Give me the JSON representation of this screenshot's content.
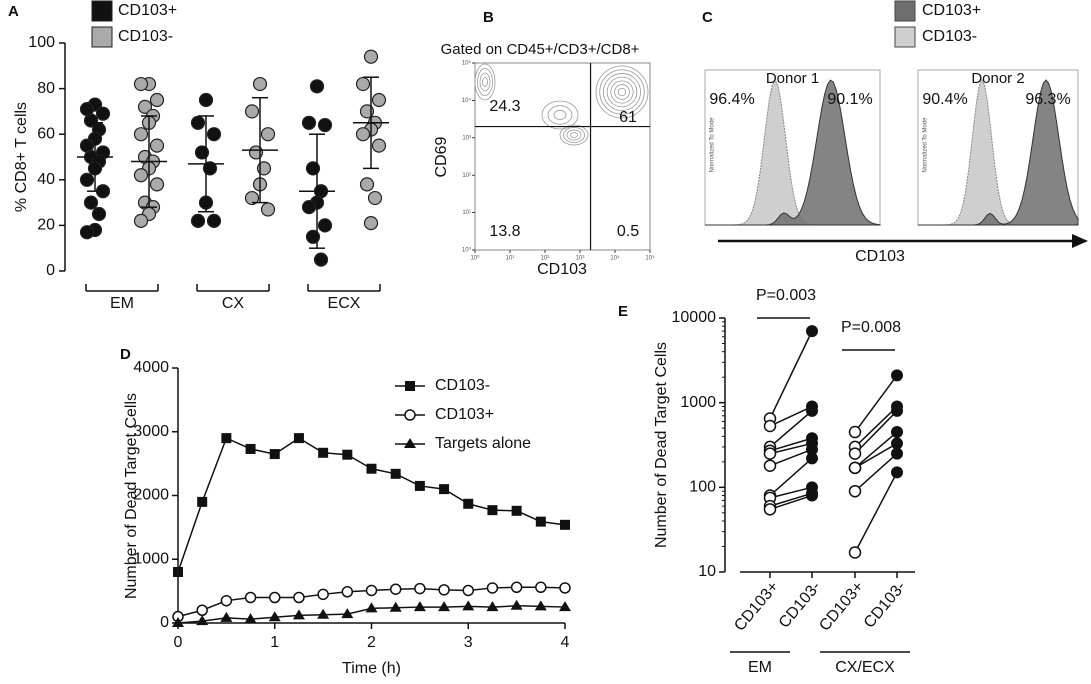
{
  "chart_data": [
    {
      "panel": "A",
      "type": "dot",
      "ylabel": "% CD8+ T cells",
      "ylim": [
        0,
        100
      ],
      "yticks": [
        0,
        20,
        40,
        60,
        80,
        100
      ],
      "categories": [
        "EM",
        "CX",
        "ECX"
      ],
      "series": [
        {
          "name": "CD103+",
          "color": "#111111",
          "values": [
            [
              73,
              71,
              69,
              66,
              62,
              58,
              55,
              52,
              50,
              48,
              45,
              40,
              35,
              30,
              25,
              18,
              17
            ],
            [
              75,
              65,
              60,
              52,
              45,
              30,
              22,
              22
            ],
            [
              81,
              65,
              64,
              45,
              35,
              30,
              28,
              20,
              15,
              5
            ]
          ],
          "mean": [
            50,
            47,
            35
          ],
          "sd": [
            15,
            21,
            25
          ]
        },
        {
          "name": "CD103-",
          "color": "#aaaaaa",
          "values": [
            [
              82,
              82,
              75,
              72,
              68,
              65,
              60,
              55,
              50,
              48,
              45,
              42,
              38,
              30,
              28,
              25,
              22
            ],
            [
              82,
              70,
              60,
              52,
              45,
              38,
              32,
              27
            ],
            [
              94,
              82,
              75,
              70,
              65,
              62,
              60,
              55,
              38,
              32,
              21
            ]
          ],
          "mean": [
            48,
            53,
            65
          ],
          "sd": [
            20,
            23,
            20
          ]
        }
      ]
    },
    {
      "panel": "B",
      "type": "flow",
      "title": "Gated on CD45+/CD3+/CD8+",
      "xlabel": "CD103",
      "ylabel": "CD69",
      "log": true,
      "xlim": [
        1,
        100000
      ],
      "ylim": [
        1,
        100000
      ],
      "xticks": [
        {
          "value": 1,
          "label": "10⁰"
        },
        {
          "value": 10,
          "label": "10¹"
        },
        {
          "value": 100,
          "label": "10²"
        },
        {
          "value": 1000,
          "label": "10³"
        },
        {
          "value": 10000,
          "label": "10⁴"
        },
        {
          "value": 100000,
          "label": "10⁵"
        }
      ],
      "yticks": [
        {
          "value": 1,
          "label": "10⁰"
        },
        {
          "value": 10,
          "label": "10¹"
        },
        {
          "value": 100,
          "label": "10²"
        },
        {
          "value": 1000,
          "label": "10³"
        },
        {
          "value": 10000,
          "label": "10⁴"
        },
        {
          "value": 100000,
          "label": "10⁵"
        }
      ],
      "gate": [
        2000,
        2000
      ],
      "quadrants": [
        24.3,
        61,
        13.8,
        0.5
      ]
    },
    {
      "panel": "C",
      "type": "histogram-overlay",
      "xlabel": "CD103",
      "ylabel": "Normalized To Mode",
      "legend": [
        {
          "name": "CD103+",
          "color": "#6e6e6e"
        },
        {
          "name": "CD103-",
          "color": "#cfcfcf"
        }
      ],
      "donors": [
        {
          "title": "Donor 1",
          "labels": [
            "96.4%",
            "90.1%"
          ]
        },
        {
          "title": "Donor 2",
          "labels": [
            "90.4%",
            "96.3%"
          ]
        }
      ]
    },
    {
      "panel": "D",
      "type": "line",
      "xlabel": "Time (h)",
      "ylabel": "Number of Dead Target Cells",
      "x": [
        0,
        0.25,
        0.5,
        0.75,
        1,
        1.25,
        1.5,
        1.75,
        2,
        2.25,
        2.5,
        2.75,
        3,
        3.25,
        3.5,
        3.75,
        4
      ],
      "xlim": [
        0,
        4
      ],
      "xticks": [
        0,
        1,
        2,
        3,
        4
      ],
      "ylim": [
        0,
        4000
      ],
      "yticks": [
        0,
        1000,
        2000,
        3000,
        4000
      ],
      "series": [
        {
          "name": "CD103-",
          "marker": "square",
          "color": "#111111",
          "values": [
            800,
            1900,
            2900,
            2730,
            2650,
            2900,
            2670,
            2640,
            2420,
            2340,
            2150,
            2100,
            1870,
            1770,
            1760,
            1590,
            1540
          ]
        },
        {
          "name": "CD103+",
          "marker": "open-circle",
          "color": "#111111",
          "values": [
            100,
            200,
            350,
            400,
            400,
            400,
            450,
            490,
            510,
            530,
            540,
            520,
            510,
            550,
            560,
            560,
            550
          ]
        },
        {
          "name": "Targets alone",
          "marker": "triangle",
          "color": "#111111",
          "values": [
            0,
            30,
            80,
            60,
            90,
            120,
            130,
            140,
            230,
            240,
            250,
            250,
            260,
            250,
            270,
            260,
            250
          ]
        }
      ]
    },
    {
      "panel": "E",
      "type": "paired",
      "ylabel": "Number of Dead Target Cells",
      "log": true,
      "ylim": [
        10,
        10000
      ],
      "yticks": [
        10,
        100,
        1000,
        10000
      ],
      "categories": [
        "CD103+",
        "CD103-",
        "CD103+",
        "CD103-"
      ],
      "groups": [
        {
          "name": "EM",
          "p_label": "P=0.003",
          "cd103_pos": [
            650,
            530,
            300,
            270,
            250,
            180,
            80,
            75,
            60,
            55
          ],
          "cd103_neg": [
            7000,
            900,
            800,
            380,
            330,
            280,
            220,
            100,
            85,
            80
          ]
        },
        {
          "name": "CX/ECX",
          "p_label": "P=0.008",
          "cd103_pos": [
            450,
            300,
            250,
            170,
            170,
            90,
            17
          ],
          "cd103_neg": [
            2100,
            900,
            800,
            450,
            330,
            250,
            150
          ]
        }
      ]
    }
  ]
}
